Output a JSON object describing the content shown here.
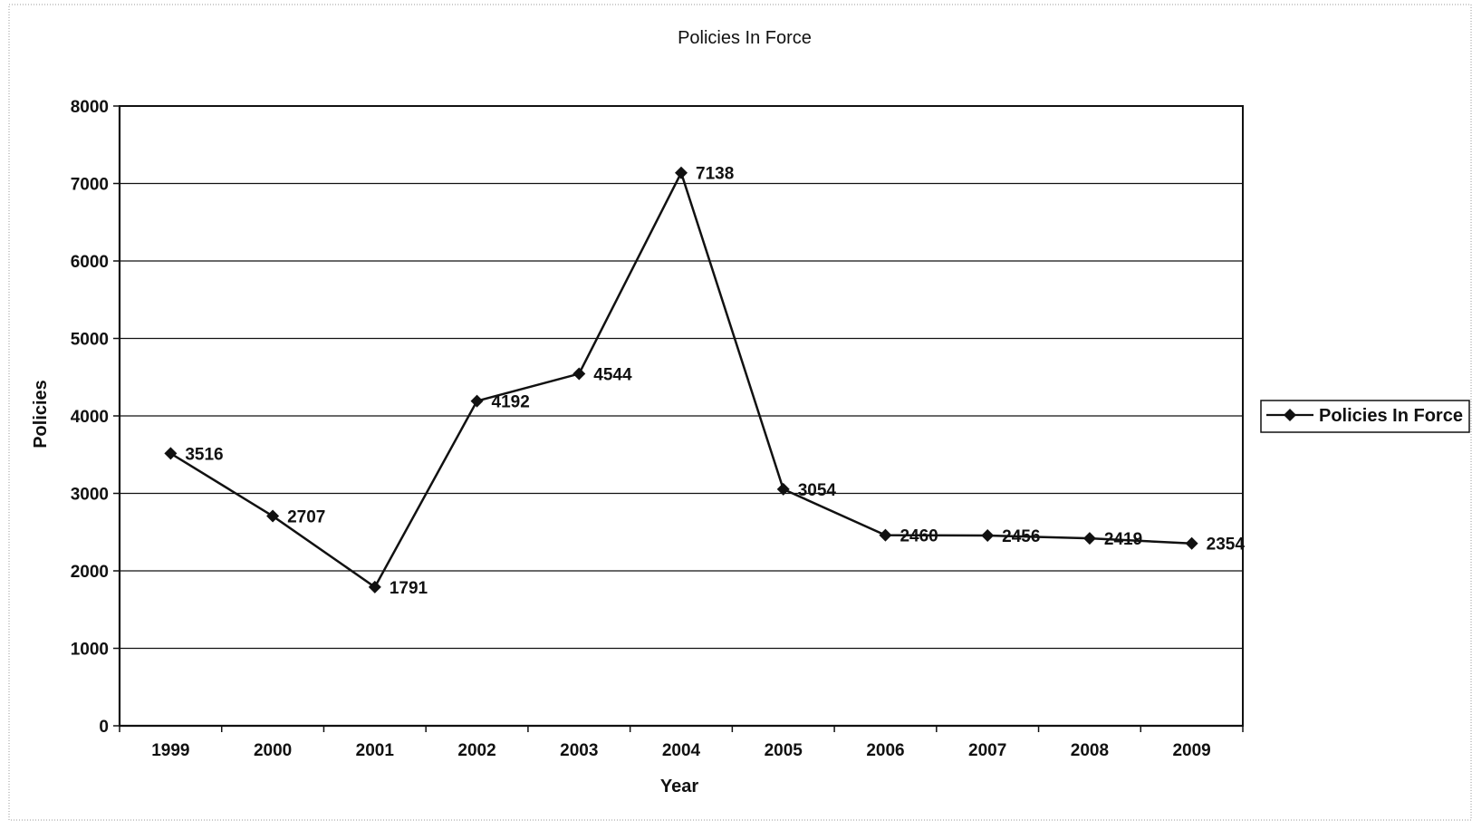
{
  "chart_data": {
    "type": "line",
    "title": "Policies In Force",
    "xlabel": "Year",
    "ylabel": "Policies",
    "categories": [
      "1999",
      "2000",
      "2001",
      "2002",
      "2003",
      "2004",
      "2005",
      "2006",
      "2007",
      "2008",
      "2009"
    ],
    "series": [
      {
        "name": "Policies In Force",
        "values": [
          3516,
          2707,
          1791,
          4192,
          4544,
          7138,
          3054,
          2460,
          2456,
          2419,
          2354
        ],
        "color": "#111111",
        "marker": "diamond"
      }
    ],
    "data_labels": [
      "3516",
      "2707",
      "1791",
      "4192",
      "4544",
      "7138",
      "3054",
      "2460",
      "2456",
      "2419",
      "2354"
    ],
    "ylim": [
      0,
      8000
    ],
    "yticks": [
      "0",
      "1000",
      "2000",
      "3000",
      "4000",
      "5000",
      "6000",
      "7000",
      "8000"
    ],
    "grid": true,
    "legend_position": "right"
  }
}
